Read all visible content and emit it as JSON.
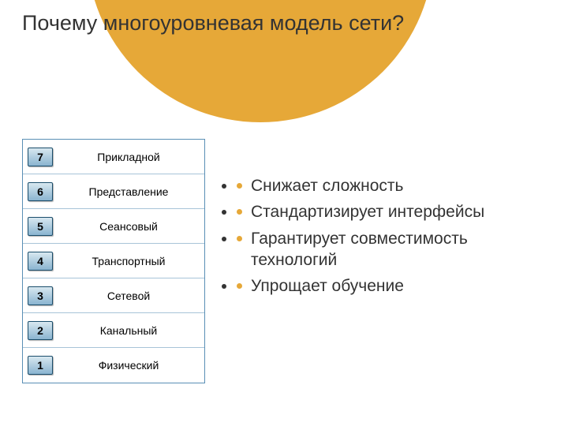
{
  "title": "Почему многоуровневая модель сети?",
  "accent_color": "#e6a838",
  "border_color": "#5a8fb5",
  "layers": [
    {
      "num": "7",
      "name": "Прикладной"
    },
    {
      "num": "6",
      "name": "Представление"
    },
    {
      "num": "5",
      "name": "Сеансовый"
    },
    {
      "num": "4",
      "name": "Транспортный"
    },
    {
      "num": "3",
      "name": "Сетевой"
    },
    {
      "num": "2",
      "name": "Канальный"
    },
    {
      "num": "1",
      "name": "Физический"
    }
  ],
  "bullets": [
    "Снижает сложность",
    "Стандартизирует интерфейсы",
    "Гарантирует совместимость технологий",
    "Упрощает обучение"
  ]
}
